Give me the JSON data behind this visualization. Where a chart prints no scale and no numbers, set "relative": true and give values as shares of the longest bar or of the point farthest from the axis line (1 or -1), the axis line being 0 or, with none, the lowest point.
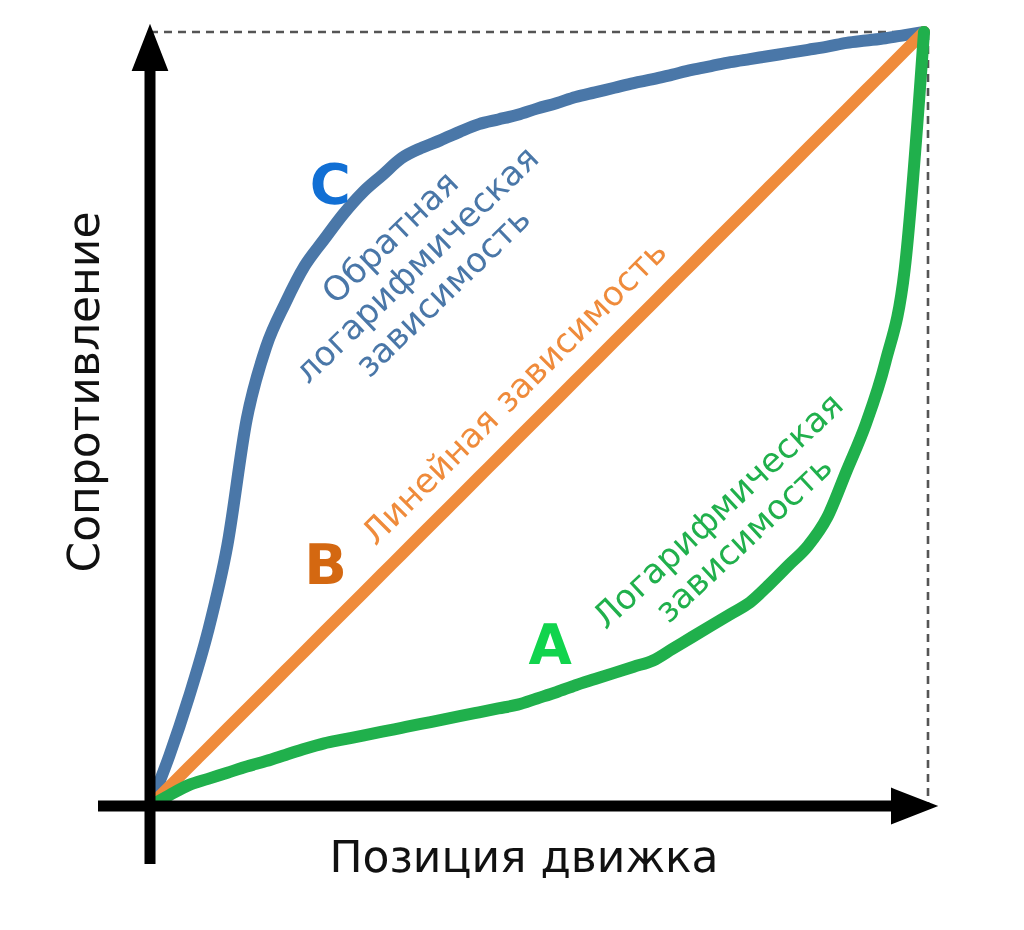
{
  "chart_data": {
    "type": "line",
    "relative": true,
    "xlabel": "Позиция движка",
    "ylabel": "Сопротивление",
    "categories": [
      null,
      null,
      null,
      null,
      null,
      null,
      null,
      null,
      null,
      null,
      null,
      null,
      null,
      null,
      null,
      null,
      null,
      null,
      null,
      null,
      null,
      null,
      null,
      null,
      null,
      null,
      null,
      null,
      null,
      null,
      null,
      null,
      null,
      null,
      null,
      null,
      null,
      null,
      null,
      null,
      null
    ],
    "series": [
      {
        "name": "Обратная логарифмическая зависимость",
        "color": "#4a77a8",
        "values": [
          0,
          0.065,
          0.14,
          0.226,
          0.337,
          0.5,
          0.593,
          0.65,
          0.698,
          0.732,
          0.765,
          0.793,
          0.815,
          0.837,
          0.85,
          0.86,
          0.871,
          0.881,
          0.887,
          0.893,
          0.901,
          0.908,
          0.916,
          0.922,
          0.928,
          0.934,
          0.939,
          0.945,
          0.951,
          0.956,
          0.961,
          0.965,
          0.969,
          0.973,
          0.977,
          0.981,
          0.986,
          0.989,
          0.992,
          0.996,
          1
        ]
      },
      {
        "name": "Линейная зависимость",
        "color": "#ef8b3b",
        "values": [
          0,
          0.025,
          0.05,
          0.075,
          0.1,
          0.125,
          0.15,
          0.175,
          0.2,
          0.225,
          0.25,
          0.275,
          0.3,
          0.325,
          0.35,
          0.375,
          0.4,
          0.425,
          0.45,
          0.475,
          0.5,
          0.525,
          0.55,
          0.575,
          0.6,
          0.625,
          0.65,
          0.675,
          0.7,
          0.725,
          0.75,
          0.775,
          0.8,
          0.825,
          0.85,
          0.875,
          0.9,
          0.925,
          0.95,
          0.975,
          1
        ]
      },
      {
        "name": "Логарифмическая зависимость",
        "color": "#20b04c",
        "values": [
          0,
          0.014,
          0.027,
          0.035,
          0.043,
          0.051,
          0.058,
          0.066,
          0.074,
          0.081,
          0.086,
          0.091,
          0.096,
          0.101,
          0.106,
          0.111,
          0.116,
          0.121,
          0.126,
          0.131,
          0.139,
          0.147,
          0.156,
          0.164,
          0.172,
          0.18,
          0.188,
          0.203,
          0.218,
          0.233,
          0.248,
          0.263,
          0.286,
          0.311,
          0.336,
          0.373,
          0.433,
          0.494,
          0.573,
          0.693,
          1
        ]
      }
    ],
    "annotations": [
      "C",
      "B",
      "A"
    ]
  }
}
